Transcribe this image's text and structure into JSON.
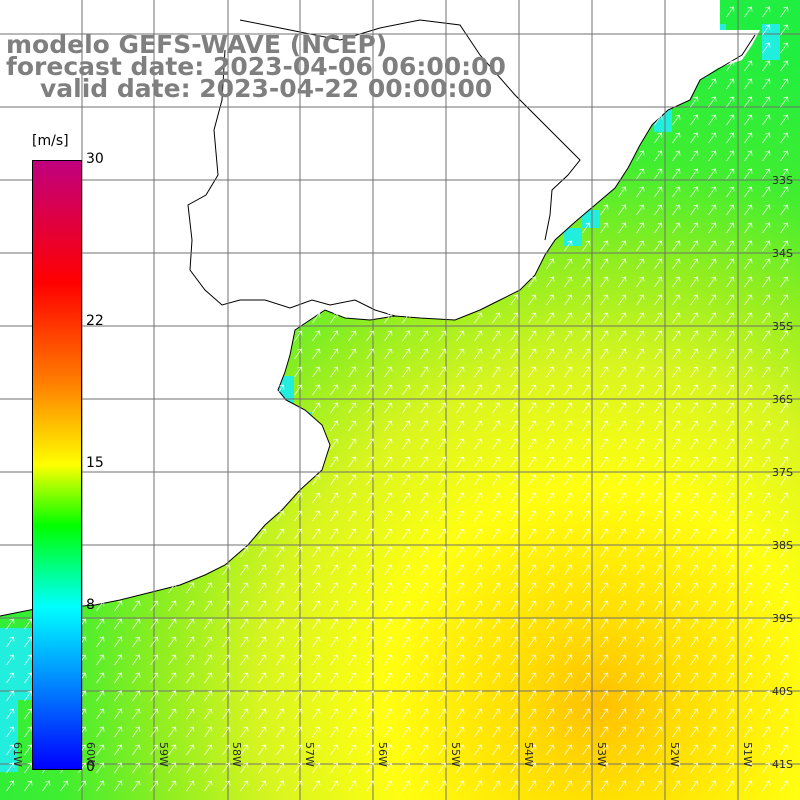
{
  "title": {
    "line1": "modelo GEFS-WAVE (NCEP)",
    "line2": "forecast date: 2023-04-06 06:00:00",
    "line3": "valid date: 2023-04-22 00:00:00"
  },
  "colorbar": {
    "unit": "[m/s]",
    "ticks": [
      {
        "label": "30",
        "value": 30
      },
      {
        "label": "22",
        "value": 22
      },
      {
        "label": "15",
        "value": 15
      },
      {
        "label": "8",
        "value": 8
      },
      {
        "label": "0",
        "value": 0
      }
    ],
    "stops": [
      {
        "value": 0,
        "color": "#0000ff"
      },
      {
        "value": 8,
        "color": "#00ffff"
      },
      {
        "value": 12,
        "color": "#00ff00"
      },
      {
        "value": 15,
        "color": "#ffff00"
      },
      {
        "value": 19,
        "color": "#ff8000"
      },
      {
        "value": 24,
        "color": "#ff0000"
      },
      {
        "value": 30,
        "color": "#c0007f"
      }
    ]
  },
  "map": {
    "lat_labels": [
      "33S",
      "34S",
      "35S",
      "36S",
      "37S",
      "38S",
      "39S",
      "40S",
      "41S"
    ],
    "lon_labels": [
      "61W",
      "60W",
      "59W",
      "58W",
      "57W",
      "56W",
      "55W",
      "54W",
      "53W",
      "52W",
      "51W"
    ],
    "land_color": "#ffffff",
    "coast_color": "#000000",
    "grid_color": "#707070",
    "arrow_color": "#ffffff"
  }
}
